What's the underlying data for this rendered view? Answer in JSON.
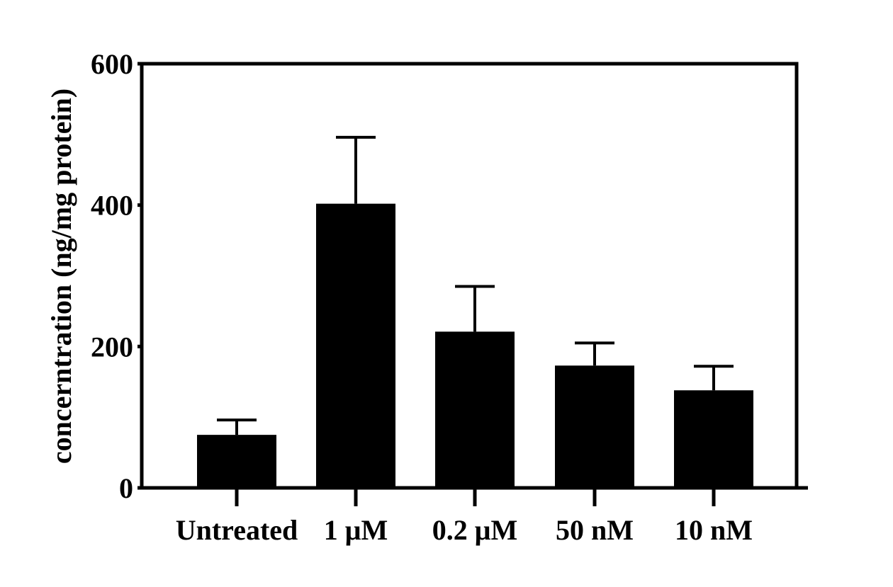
{
  "chart_data": {
    "type": "bar",
    "categories": [
      "Untreated",
      "1 μM",
      "0.2 μM",
      "50 nM",
      "10 nM"
    ],
    "values": [
      75,
      402,
      221,
      173,
      138
    ],
    "error_upper": [
      96,
      496,
      285,
      205,
      172
    ],
    "title": "",
    "xlabel": "",
    "ylabel": "concerntration (ng/mg protein)",
    "ylim": [
      0,
      600
    ],
    "yticks": [
      0,
      200,
      400,
      600
    ],
    "ytick_labels": [
      "0",
      "200",
      "400",
      "600"
    ],
    "grid": false,
    "legend": "none",
    "bar_color": "#000000"
  }
}
